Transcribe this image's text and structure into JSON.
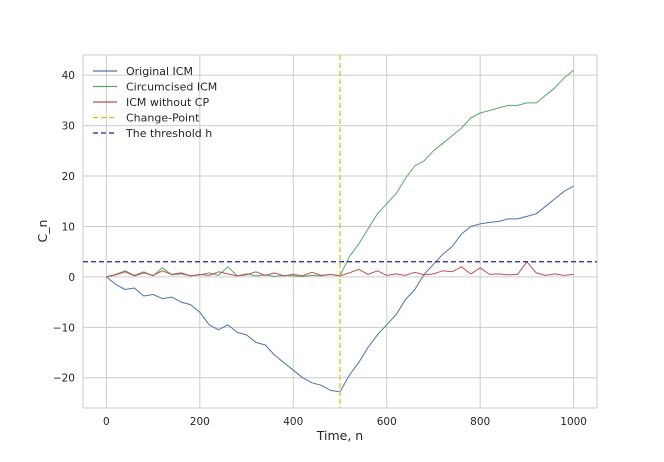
{
  "chart_data": {
    "type": "line",
    "xlabel": "Time, n",
    "ylabel": "C_n",
    "xlim": [
      -50,
      1050
    ],
    "ylim": [
      -26,
      44
    ],
    "x_ticks": [
      0,
      200,
      400,
      600,
      800,
      1000
    ],
    "y_ticks": [
      -20,
      -10,
      0,
      10,
      20,
      30,
      40
    ],
    "x_tick_labels": [
      "0",
      "200",
      "400",
      "600",
      "800",
      "1000"
    ],
    "y_tick_labels": [
      "−20",
      "−10",
      "0",
      "10",
      "20",
      "30",
      "40"
    ],
    "grid": true,
    "legend_position": "top-left",
    "series": [
      {
        "name": "Original ICM",
        "color": "#4c72b0",
        "x": [
          0,
          20,
          40,
          60,
          80,
          100,
          120,
          140,
          160,
          180,
          200,
          220,
          240,
          260,
          280,
          300,
          320,
          340,
          360,
          380,
          400,
          420,
          440,
          460,
          480,
          500,
          520,
          540,
          560,
          580,
          600,
          620,
          640,
          660,
          680,
          700,
          720,
          740,
          760,
          780,
          800,
          820,
          840,
          860,
          880,
          900,
          920,
          940,
          960,
          980,
          1000
        ],
        "y": [
          0,
          -1.5,
          -2.5,
          -2.2,
          -3.8,
          -3.5,
          -4.3,
          -4.0,
          -5.0,
          -5.5,
          -7.0,
          -9.5,
          -10.5,
          -9.5,
          -11.0,
          -11.5,
          -13.0,
          -13.5,
          -15.5,
          -17.0,
          -18.5,
          -20.0,
          -21.0,
          -21.5,
          -22.5,
          -22.8,
          -19.5,
          -17.0,
          -14.0,
          -11.5,
          -9.5,
          -7.5,
          -4.5,
          -2.5,
          0.5,
          2.5,
          4.5,
          6.0,
          8.5,
          10.0,
          10.5,
          10.8,
          11.0,
          11.5,
          11.5,
          12.0,
          12.5,
          14.0,
          15.5,
          17.0,
          18.0
        ]
      },
      {
        "name": "Circumcised ICM",
        "color": "#55a868",
        "x": [
          0,
          20,
          40,
          60,
          80,
          100,
          120,
          140,
          160,
          180,
          200,
          220,
          240,
          260,
          280,
          300,
          320,
          340,
          360,
          380,
          400,
          420,
          440,
          460,
          480,
          500,
          520,
          540,
          560,
          580,
          600,
          620,
          640,
          660,
          680,
          700,
          720,
          740,
          760,
          780,
          800,
          820,
          840,
          860,
          880,
          900,
          920,
          940,
          960,
          980,
          1000
        ],
        "y": [
          0,
          0.5,
          1.2,
          0.3,
          1.0,
          0.2,
          1.8,
          0.4,
          0.6,
          0.2,
          0.4,
          0.8,
          0.3,
          2.0,
          0.2,
          0.6,
          0.2,
          0.4,
          0.1,
          0.3,
          0.2,
          0.1,
          0.3,
          0.2,
          0.5,
          0.2,
          4.0,
          6.5,
          9.5,
          12.5,
          14.5,
          16.5,
          19.5,
          22.0,
          23.0,
          25.0,
          26.5,
          28.0,
          29.5,
          31.5,
          32.5,
          33.0,
          33.5,
          34.0,
          34.0,
          34.5,
          34.5,
          36.0,
          37.5,
          39.5,
          41.0
        ]
      },
      {
        "name": "ICM without CP",
        "color": "#c44e52",
        "x": [
          0,
          20,
          40,
          60,
          80,
          100,
          120,
          140,
          160,
          180,
          200,
          220,
          240,
          260,
          280,
          300,
          320,
          340,
          360,
          380,
          400,
          420,
          440,
          460,
          480,
          500,
          520,
          540,
          560,
          580,
          600,
          620,
          640,
          660,
          680,
          700,
          720,
          740,
          760,
          780,
          800,
          820,
          840,
          860,
          880,
          900,
          920,
          940,
          960,
          980,
          1000
        ],
        "y": [
          0,
          0.4,
          1.0,
          0.2,
          0.8,
          0.3,
          1.2,
          0.5,
          0.8,
          0.2,
          0.5,
          0.3,
          1.0,
          0.6,
          0.2,
          0.4,
          1.0,
          0.3,
          0.8,
          0.2,
          0.5,
          0.2,
          0.9,
          0.3,
          0.5,
          0.2,
          0.8,
          1.5,
          0.5,
          1.2,
          0.3,
          0.6,
          0.3,
          0.9,
          0.4,
          0.6,
          1.2,
          1.0,
          2.0,
          0.6,
          1.8,
          0.5,
          0.6,
          0.4,
          0.5,
          3.0,
          0.8,
          0.3,
          0.6,
          0.3,
          0.5
        ]
      },
      {
        "name": "Change-Point",
        "color": "#c8c800",
        "style": "dashed",
        "vertical_x": 500
      },
      {
        "name": "The threshold h",
        "color": "#1f1fb4",
        "style": "dashed",
        "horizontal_y": 3
      }
    ]
  }
}
